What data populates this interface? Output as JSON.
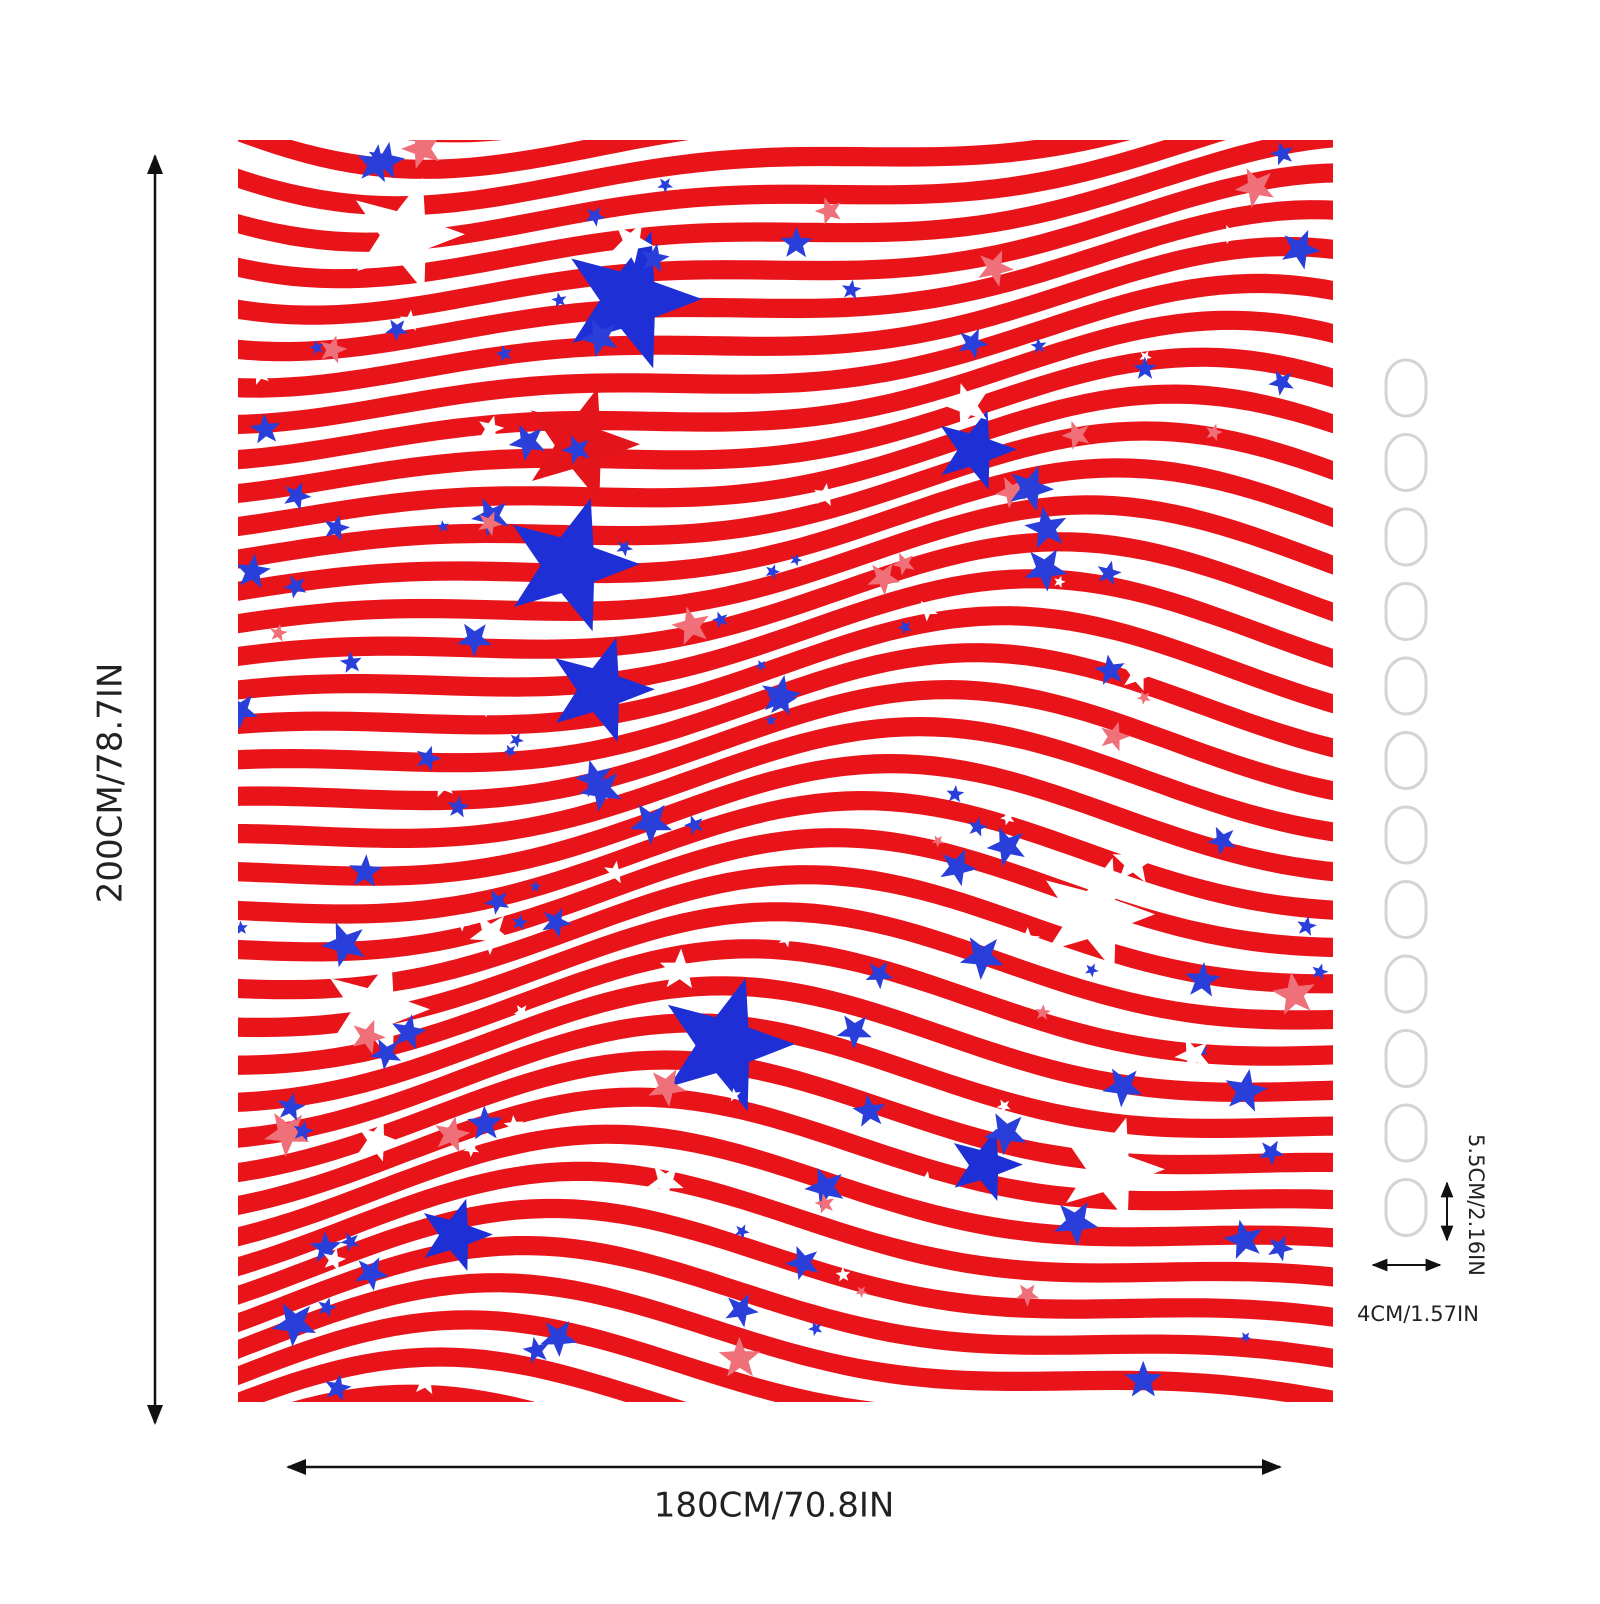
{
  "dimensions": {
    "height": "200CM/78.7IN",
    "width": "180CM/70.8IN",
    "ring_height": "5.5CM/2.16IN",
    "ring_width": "4CM/1.57IN"
  }
}
